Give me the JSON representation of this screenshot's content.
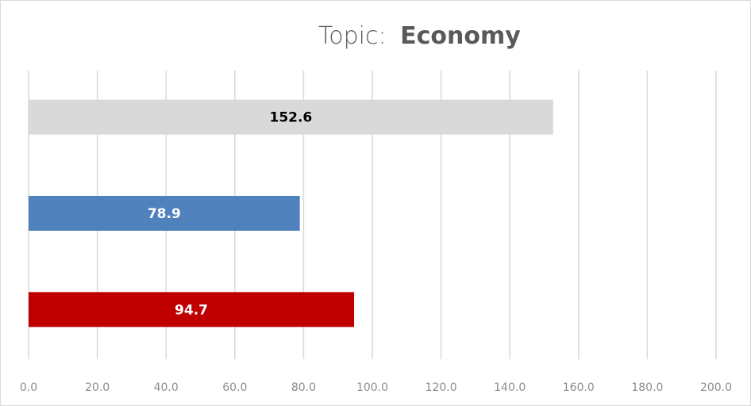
{
  "chart_data": {
    "type": "bar",
    "orientation": "horizontal",
    "title_prefix": "Topic:",
    "title_topic": "Economy",
    "xlim": [
      0,
      200
    ],
    "x_ticks": [
      0,
      20,
      40,
      60,
      80,
      100,
      120,
      140,
      160,
      180,
      200
    ],
    "x_tick_labels": [
      "0.0",
      "20.0",
      "40.0",
      "60.0",
      "80.0",
      "100.0",
      "120.0",
      "140.0",
      "160.0",
      "180.0",
      "200.0"
    ],
    "grid": true,
    "bars": [
      {
        "value": 152.6,
        "label": "152.6",
        "color": "#d9d9d9",
        "label_color": "#000000"
      },
      {
        "value": 78.9,
        "label": "78.9",
        "color": "#4f81bd",
        "label_color": "#ffffff"
      },
      {
        "value": 94.7,
        "label": "94.7",
        "color": "#c00000",
        "label_color": "#ffffff"
      }
    ]
  }
}
